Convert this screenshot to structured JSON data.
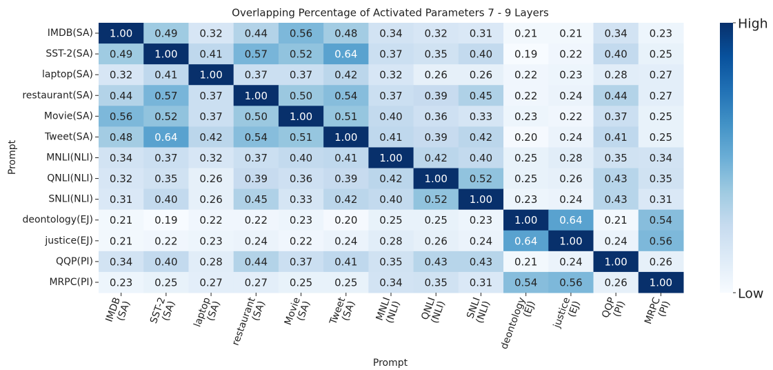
{
  "chart_data": {
    "type": "heatmap",
    "title": "Overlapping Percentage of Activated Parameters 7 - 9 Layers",
    "x_label": "Prompt",
    "y_label": "Prompt",
    "x_categories": [
      [
        "IMDB",
        "(SA)"
      ],
      [
        "SST-2",
        "(SA)"
      ],
      [
        "laptop",
        "(SA)"
      ],
      [
        "restaurant",
        "(SA)"
      ],
      [
        "Movie",
        "(SA)"
      ],
      [
        "Tweet",
        "(SA)"
      ],
      [
        "MNLI",
        "(NLI)"
      ],
      [
        "QNLI",
        "(NLI)"
      ],
      [
        "SNLI",
        "(NLI)"
      ],
      [
        "deontology",
        "(EJ)"
      ],
      [
        "justice",
        "(EJ)"
      ],
      [
        "QQP",
        "(PI)"
      ],
      [
        "MRPC",
        "(PI)"
      ]
    ],
    "y_categories": [
      "IMDB(SA)",
      "SST-2(SA)",
      "laptop(SA)",
      "restaurant(SA)",
      "Movie(SA)",
      "Tweet(SA)",
      "MNLI(NLI)",
      "QNLI(NLI)",
      "SNLI(NLI)",
      "deontology(EJ)",
      "justice(EJ)",
      "QQP(PI)",
      "MRPC(PI)"
    ],
    "values": [
      [
        1,
        0.49,
        0.32,
        0.44,
        0.56,
        0.48,
        0.34,
        0.32,
        0.31,
        0.21,
        0.21,
        0.34,
        0.23
      ],
      [
        0.49,
        1,
        0.41,
        0.57,
        0.52,
        0.64,
        0.37,
        0.35,
        0.4,
        0.19,
        0.22,
        0.4,
        0.25
      ],
      [
        0.32,
        0.41,
        1,
        0.37,
        0.37,
        0.42,
        0.32,
        0.26,
        0.26,
        0.22,
        0.23,
        0.28,
        0.27
      ],
      [
        0.44,
        0.57,
        0.37,
        1,
        0.5,
        0.54,
        0.37,
        0.39,
        0.45,
        0.22,
        0.24,
        0.44,
        0.27
      ],
      [
        0.56,
        0.52,
        0.37,
        0.5,
        1,
        0.51,
        0.4,
        0.36,
        0.33,
        0.23,
        0.22,
        0.37,
        0.25
      ],
      [
        0.48,
        0.64,
        0.42,
        0.54,
        0.51,
        1,
        0.41,
        0.39,
        0.42,
        0.2,
        0.24,
        0.41,
        0.25
      ],
      [
        0.34,
        0.37,
        0.32,
        0.37,
        0.4,
        0.41,
        1,
        0.42,
        0.4,
        0.25,
        0.28,
        0.35,
        0.34
      ],
      [
        0.32,
        0.35,
        0.26,
        0.39,
        0.36,
        0.39,
        0.42,
        1,
        0.52,
        0.25,
        0.26,
        0.43,
        0.35
      ],
      [
        0.31,
        0.4,
        0.26,
        0.45,
        0.33,
        0.42,
        0.4,
        0.52,
        1,
        0.23,
        0.24,
        0.43,
        0.31
      ],
      [
        0.21,
        0.19,
        0.22,
        0.22,
        0.23,
        0.2,
        0.25,
        0.25,
        0.23,
        1,
        0.64,
        0.21,
        0.54
      ],
      [
        0.21,
        0.22,
        0.23,
        0.24,
        0.22,
        0.24,
        0.28,
        0.26,
        0.24,
        0.64,
        1,
        0.24,
        0.56
      ],
      [
        0.34,
        0.4,
        0.28,
        0.44,
        0.37,
        0.41,
        0.35,
        0.43,
        0.43,
        0.21,
        0.24,
        1,
        0.26
      ],
      [
        0.23,
        0.25,
        0.27,
        0.27,
        0.25,
        0.25,
        0.34,
        0.35,
        0.31,
        0.54,
        0.56,
        0.26,
        1
      ]
    ],
    "value_labels": [
      [
        "1.00",
        "0.49",
        "0.32",
        "0.44",
        "0.56",
        "0.48",
        "0.34",
        "0.32",
        "0.31",
        "0.21",
        "0.21",
        "0.34",
        "0.23"
      ],
      [
        "0.49",
        "1.00",
        "0.41",
        "0.57",
        "0.52",
        "0.64",
        "0.37",
        "0.35",
        "0.40",
        "0.19",
        "0.22",
        "0.40",
        "0.25"
      ],
      [
        "0.32",
        "0.41",
        "1.00",
        "0.37",
        "0.37",
        "0.42",
        "0.32",
        "0.26",
        "0.26",
        "0.22",
        "0.23",
        "0.28",
        "0.27"
      ],
      [
        "0.44",
        "0.57",
        "0.37",
        "1.00",
        "0.50",
        "0.54",
        "0.37",
        "0.39",
        "0.45",
        "0.22",
        "0.24",
        "0.44",
        "0.27"
      ],
      [
        "0.56",
        "0.52",
        "0.37",
        "0.50",
        "1.00",
        "0.51",
        "0.40",
        "0.36",
        "0.33",
        "0.23",
        "0.22",
        "0.37",
        "0.25"
      ],
      [
        "0.48",
        "0.64",
        "0.42",
        "0.54",
        "0.51",
        "1.00",
        "0.41",
        "0.39",
        "0.42",
        "0.20",
        "0.24",
        "0.41",
        "0.25"
      ],
      [
        "0.34",
        "0.37",
        "0.32",
        "0.37",
        "0.40",
        "0.41",
        "1.00",
        "0.42",
        "0.40",
        "0.25",
        "0.28",
        "0.35",
        "0.34"
      ],
      [
        "0.32",
        "0.35",
        "0.26",
        "0.39",
        "0.36",
        "0.39",
        "0.42",
        "1.00",
        "0.52",
        "0.25",
        "0.26",
        "0.43",
        "0.35"
      ],
      [
        "0.31",
        "0.40",
        "0.26",
        "0.45",
        "0.33",
        "0.42",
        "0.40",
        "0.52",
        "1.00",
        "0.23",
        "0.24",
        "0.43",
        "0.31"
      ],
      [
        "0.21",
        "0.19",
        "0.22",
        "0.22",
        "0.23",
        "0.20",
        "0.25",
        "0.25",
        "0.23",
        "1.00",
        "0.64",
        "0.21",
        "0.54"
      ],
      [
        "0.21",
        "0.22",
        "0.23",
        "0.24",
        "0.22",
        "0.24",
        "0.28",
        "0.26",
        "0.24",
        "0.64",
        "1.00",
        "0.24",
        "0.56"
      ],
      [
        "0.34",
        "0.40",
        "0.28",
        "0.44",
        "0.37",
        "0.41",
        "0.35",
        "0.43",
        "0.43",
        "0.21",
        "0.24",
        "1.00",
        "0.26"
      ],
      [
        "0.23",
        "0.25",
        "0.27",
        "0.27",
        "0.25",
        "0.25",
        "0.34",
        "0.35",
        "0.31",
        "0.54",
        "0.56",
        "0.26",
        "1.00"
      ]
    ],
    "colormap": [
      "#f7fbff",
      "#deebf7",
      "#c6dbef",
      "#9ecae1",
      "#6baed6",
      "#4292c6",
      "#2171b5",
      "#08519c",
      "#08306b"
    ],
    "zlim": [
      0.19,
      1
    ],
    "cbar_ticks": [
      {
        "value": 1,
        "label": "High"
      },
      {
        "value": 0.19,
        "label": "Low"
      }
    ]
  }
}
